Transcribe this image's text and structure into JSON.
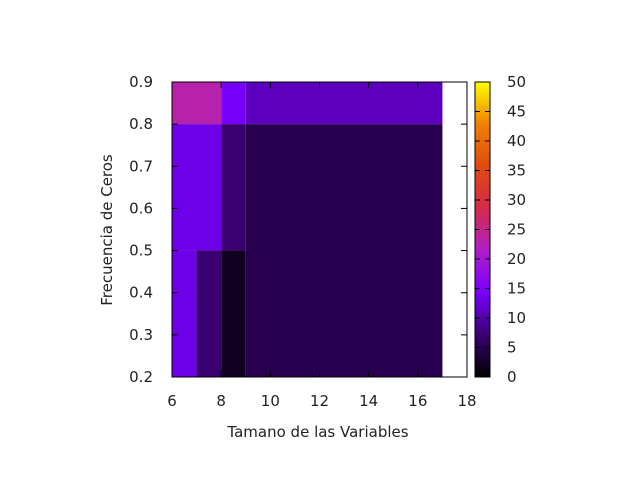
{
  "chart_data": {
    "type": "heatmap",
    "title": "",
    "xlabel": "Tamano de las Variables",
    "ylabel": "Frecuencia de Ceros",
    "xlim": [
      6,
      18
    ],
    "ylim": [
      0.2,
      0.9
    ],
    "x_ticks": [
      "6",
      "8",
      "10",
      "12",
      "14",
      "16",
      "18"
    ],
    "y_ticks": [
      "0.2",
      "0.3",
      "0.4",
      "0.5",
      "0.6",
      "0.7",
      "0.8",
      "0.9"
    ],
    "colorbar": {
      "min": 0,
      "max": 50,
      "ticks": [
        "0",
        "5",
        "10",
        "15",
        "20",
        "25",
        "30",
        "35",
        "40",
        "45",
        "50"
      ],
      "palette": [
        "#000000",
        "#3b0072",
        "#7800ff",
        "#b01ec8",
        "#d42a4a",
        "#e04a10",
        "#f08000",
        "#ffff00"
      ]
    },
    "cells": [
      {
        "x0": 6,
        "x1": 8,
        "y0": 0.8,
        "y1": 0.9,
        "value": 23
      },
      {
        "x0": 8,
        "x1": 9,
        "y0": 0.8,
        "y1": 0.9,
        "value": 14
      },
      {
        "x0": 9,
        "x1": 17,
        "y0": 0.8,
        "y1": 0.9,
        "value": 11
      },
      {
        "x0": 6,
        "x1": 8,
        "y0": 0.5,
        "y1": 0.8,
        "value": 13
      },
      {
        "x0": 8,
        "x1": 9,
        "y0": 0.5,
        "y1": 0.8,
        "value": 7
      },
      {
        "x0": 9,
        "x1": 17,
        "y0": 0.2,
        "y1": 0.8,
        "value": 5
      },
      {
        "x0": 6,
        "x1": 7,
        "y0": 0.2,
        "y1": 0.5,
        "value": 13
      },
      {
        "x0": 7,
        "x1": 8,
        "y0": 0.2,
        "y1": 0.5,
        "value": 7
      },
      {
        "x0": 8,
        "x1": 9,
        "y0": 0.2,
        "y1": 0.5,
        "value": 2
      }
    ]
  }
}
